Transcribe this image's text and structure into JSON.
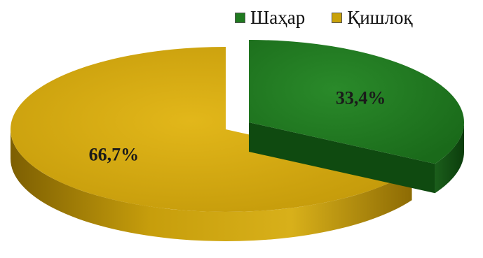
{
  "chart_data": {
    "type": "pie",
    "style": "3d-exploded",
    "categories": [
      "Шаҳар",
      "Қишлоқ"
    ],
    "values": [
      33.4,
      66.7
    ],
    "data_labels": [
      "33,4%",
      "66,7%"
    ],
    "colors": [
      "#1f7a1f",
      "#c9a20a"
    ],
    "side_colors": [
      "#0f4a10",
      "#8a6a04"
    ],
    "legend_position": "top-right",
    "exploded": [
      true,
      false
    ]
  }
}
